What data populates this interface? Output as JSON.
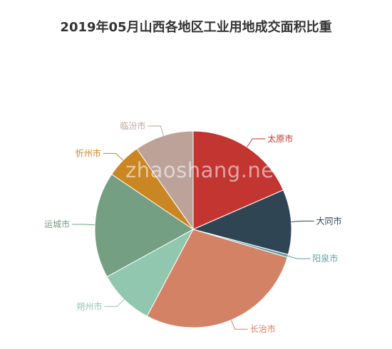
{
  "chart_data": {
    "type": "pie",
    "title": "2019年05月山西各地区工业用地成交面积比重",
    "slices": [
      {
        "label": "太原市",
        "value": 19,
        "color": "#c23531"
      },
      {
        "label": "大同市",
        "value": 11,
        "color": "#2f4554"
      },
      {
        "label": "阳泉市",
        "value": 0.5,
        "color": "#61a0a8"
      },
      {
        "label": "长治市",
        "value": 29,
        "color": "#d48265"
      },
      {
        "label": "朔州市",
        "value": 9.5,
        "color": "#91c7ae"
      },
      {
        "label": "运城市",
        "value": 18,
        "color": "#749f83"
      },
      {
        "label": "忻州市",
        "value": 6,
        "color": "#ca8622"
      },
      {
        "label": "临汾市",
        "value": 10,
        "color": "#bda29a"
      }
    ],
    "legend": "none"
  },
  "watermark": "zhaoshang.net"
}
